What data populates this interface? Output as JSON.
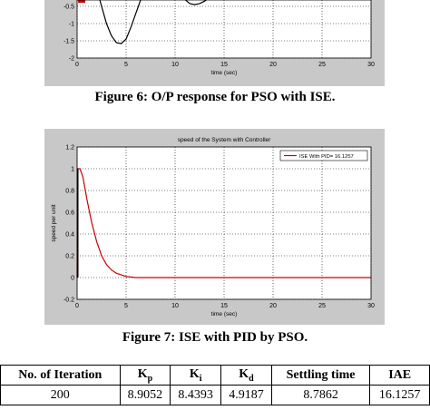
{
  "figure6": {
    "caption": "Figure 6: O/P response for PSO with ISE.",
    "chart_data": {
      "type": "line",
      "xlabel": "time (sec)",
      "ylabel": "",
      "title": "",
      "xlim": [
        0,
        30
      ],
      "ylim_visible": [
        -2,
        -0.5
      ],
      "x_ticks": [
        "0",
        "5",
        "10",
        "15",
        "20",
        "25",
        "30"
      ],
      "y_ticks": [
        "-0.5",
        "-1",
        "-1.5",
        "-2"
      ],
      "grid": true,
      "series": [
        {
          "color": "#000000",
          "x": [
            0,
            1,
            2,
            3,
            3.5,
            4,
            4.5,
            5,
            5.5,
            6,
            6.5,
            7
          ],
          "y": [
            1.0,
            0.6,
            0.0,
            -1.0,
            -1.35,
            -1.55,
            -1.58,
            -1.45,
            -1.1,
            -0.7,
            -0.3,
            0.0
          ]
        },
        {
          "color": "#000000",
          "x": [
            11,
            11.5,
            12,
            12.5,
            13,
            13.5
          ],
          "y": [
            -0.3,
            -0.42,
            -0.45,
            -0.42,
            -0.35,
            -0.25
          ]
        }
      ]
    }
  },
  "figure7": {
    "caption": "Figure 7: ISE with PID by PSO.",
    "chart_data": {
      "type": "line",
      "title": "speed of the System with Controller",
      "xlabel": "time (sec)",
      "ylabel": "speed per unit",
      "xlim": [
        0,
        30
      ],
      "ylim": [
        -0.2,
        1.2
      ],
      "x_ticks": [
        "0",
        "5",
        "10",
        "15",
        "20",
        "25",
        "30"
      ],
      "y_ticks": [
        "-0.2",
        "0",
        "0.2",
        "0.4",
        "0.6",
        "0.8",
        "1",
        "1.2"
      ],
      "grid": true,
      "legend_position": "top-right",
      "series": [
        {
          "name": "ISE With PID= 16.1257",
          "color": "#cc0000",
          "x": [
            0,
            0.05,
            0.3,
            0.6,
            1.0,
            1.5,
            2.0,
            2.5,
            3.0,
            3.5,
            4.0,
            5.0,
            6.0,
            30
          ],
          "y": [
            0,
            1.0,
            1.0,
            0.92,
            0.72,
            0.5,
            0.33,
            0.2,
            0.12,
            0.07,
            0.04,
            0.01,
            0.0,
            0.0
          ]
        }
      ]
    }
  },
  "table": {
    "headers": [
      {
        "main": "No. of Iteration",
        "sub": ""
      },
      {
        "main": "K",
        "sub": "p"
      },
      {
        "main": "K",
        "sub": "i"
      },
      {
        "main": "K",
        "sub": "d"
      },
      {
        "main": "Settling time",
        "sub": ""
      },
      {
        "main": "IAE",
        "sub": ""
      }
    ],
    "rows": [
      [
        "200",
        "8.9052",
        "8.4393",
        "4.9187",
        "8.7862",
        "16.1257"
      ]
    ]
  }
}
